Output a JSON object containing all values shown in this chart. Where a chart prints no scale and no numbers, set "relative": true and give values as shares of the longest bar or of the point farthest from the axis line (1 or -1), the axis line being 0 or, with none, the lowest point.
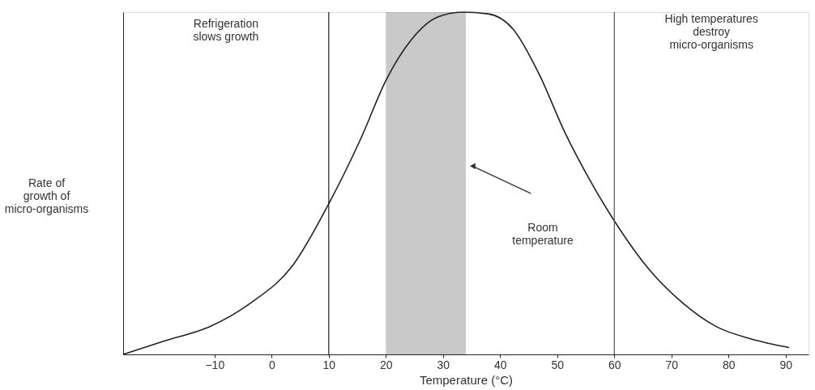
{
  "chart_data": {
    "type": "line",
    "relative": true,
    "xlabel": "Temperature (°C)",
    "ylabel": "Rate of\ngrowth of\nmicro-organisms",
    "x": [
      -26,
      -18.6,
      -11,
      -3.7,
      3.7,
      10,
      15.6,
      20,
      24.5,
      29,
      33.4,
      37.9,
      42.3,
      46.8,
      51.3,
      55.7,
      60,
      66,
      72,
      78,
      84,
      90.6
    ],
    "series": [
      {
        "color": "#222222",
        "values": [
          0,
          0.04,
          0.08,
          0.15,
          0.26,
          0.44,
          0.63,
          0.8,
          0.92,
          0.985,
          1,
          0.995,
          0.95,
          0.82,
          0.65,
          0.51,
          0.39,
          0.25,
          0.15,
          0.08,
          0.045,
          0.02
        ]
      }
    ],
    "xlim": [
      -26,
      94
    ],
    "xticks": [
      -10,
      0,
      10,
      20,
      30,
      40,
      50,
      60,
      70,
      80,
      90
    ],
    "ref_lines": [
      {
        "axis": "x",
        "value": 10,
        "color": "#222222"
      },
      {
        "axis": "x",
        "value": 60,
        "color": "#555555"
      }
    ],
    "bands": [
      {
        "axis": "x",
        "from": 20,
        "to": 34,
        "color": "#888888"
      }
    ],
    "annotations": [
      "Refrigeration\nslows growth",
      "High temperatures\ndestroy\nmicro-organisms",
      "Room\ntemperature"
    ],
    "grid": false
  }
}
